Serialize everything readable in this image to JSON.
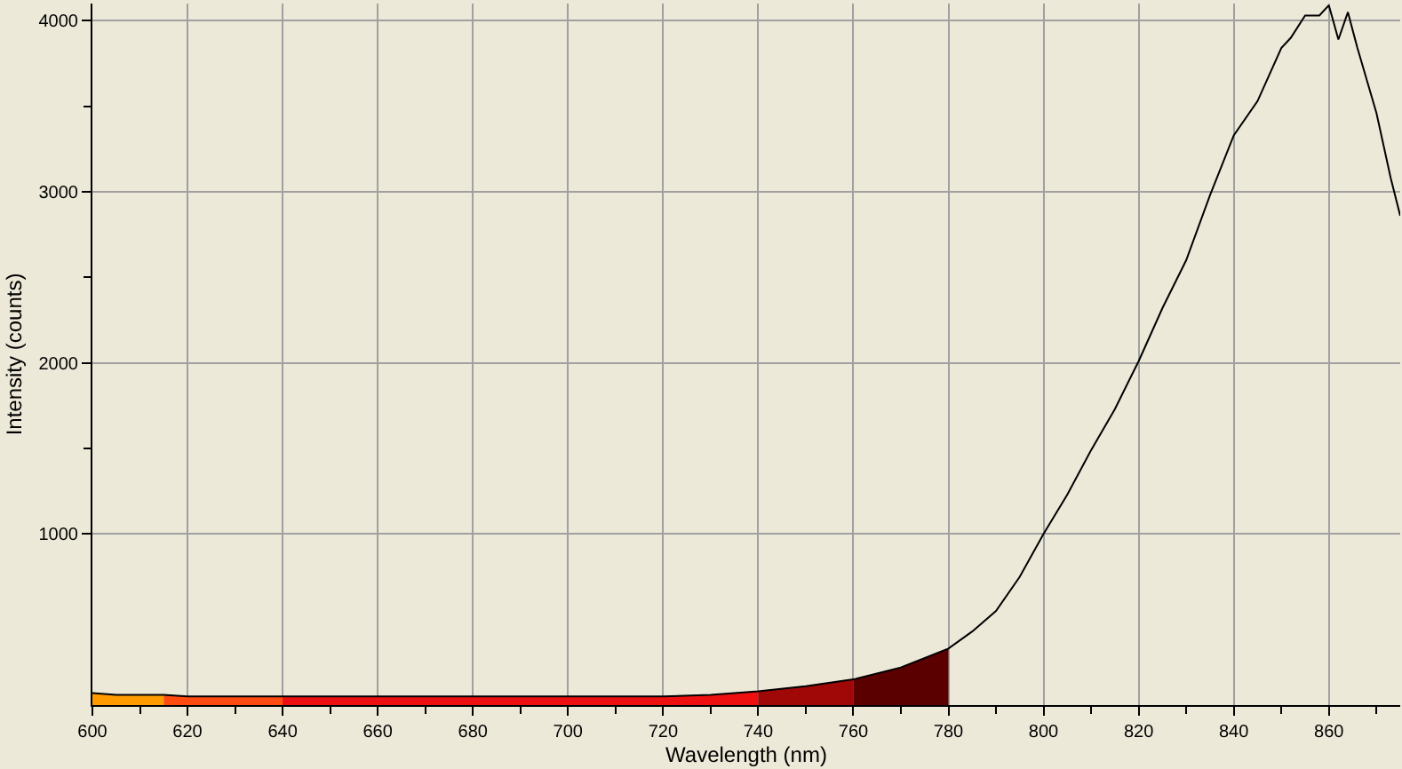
{
  "chart_data": {
    "type": "line",
    "xlabel": "Wavelength (nm)",
    "ylabel": "Intensity (counts)",
    "xlim": [
      600,
      875
    ],
    "ylim": [
      0,
      4100
    ],
    "xticks": [
      600,
      {
        "value": 610,
        "label": null
      },
      620,
      {
        "value": 630,
        "label": null
      },
      640,
      {
        "value": 650,
        "label": null
      },
      660,
      {
        "value": 670,
        "label": null
      },
      680,
      {
        "value": 690,
        "label": null
      },
      700,
      {
        "value": 710,
        "label": null
      },
      720,
      {
        "value": 730,
        "label": null
      },
      740,
      {
        "value": 750,
        "label": null
      },
      760,
      {
        "value": 770,
        "label": null
      },
      780,
      {
        "value": 790,
        "label": null
      },
      800,
      {
        "value": 810,
        "label": null
      },
      820,
      {
        "value": 830,
        "label": null
      },
      840,
      {
        "value": 850,
        "label": null
      },
      860,
      {
        "value": 870,
        "label": null
      }
    ],
    "yticks": [
      1000,
      {
        "value": 1500,
        "label": null
      },
      2000,
      {
        "value": 2500,
        "label": null
      },
      3000,
      {
        "value": 3500,
        "label": null
      },
      4000
    ],
    "grid": true,
    "marker": "none",
    "line_style": "solid",
    "series": [
      {
        "type": "area",
        "color": "#ff9a00",
        "x": [
          600,
          605,
          610,
          615
        ],
        "values": [
          70,
          60,
          60,
          60
        ]
      },
      {
        "type": "area",
        "color": "#ff4a10",
        "x": [
          615,
          620,
          630,
          640
        ],
        "values": [
          60,
          50,
          50,
          50
        ]
      },
      {
        "type": "area",
        "color": "#ee1010",
        "x": [
          640,
          660,
          680,
          700,
          720,
          730,
          740
        ],
        "values": [
          50,
          50,
          50,
          50,
          50,
          60,
          80
        ]
      },
      {
        "type": "area",
        "color": "#a00808",
        "x": [
          740,
          750,
          760
        ],
        "values": [
          80,
          110,
          150
        ]
      },
      {
        "type": "area",
        "color": "#5a0000",
        "x": [
          760,
          770,
          780
        ],
        "values": [
          150,
          220,
          330
        ]
      },
      {
        "color": "#000000",
        "x": [
          600,
          605,
          610,
          615,
          620,
          630,
          640,
          660,
          680,
          700,
          720,
          730,
          740,
          750,
          760,
          770,
          780,
          785,
          790,
          795,
          800,
          805,
          810,
          815,
          820,
          825,
          830,
          835,
          840,
          845,
          850,
          852,
          855,
          858,
          860,
          862,
          864,
          866,
          870,
          873,
          875
        ],
        "values": [
          70,
          60,
          60,
          60,
          50,
          50,
          50,
          50,
          50,
          50,
          50,
          60,
          80,
          110,
          150,
          220,
          330,
          430,
          550,
          750,
          1000,
          1230,
          1490,
          1730,
          2010,
          2320,
          2600,
          2980,
          3330,
          3530,
          3840,
          3900,
          4030,
          4030,
          4090,
          3890,
          4050,
          3840,
          3460,
          3080,
          2860
        ]
      }
    ]
  }
}
